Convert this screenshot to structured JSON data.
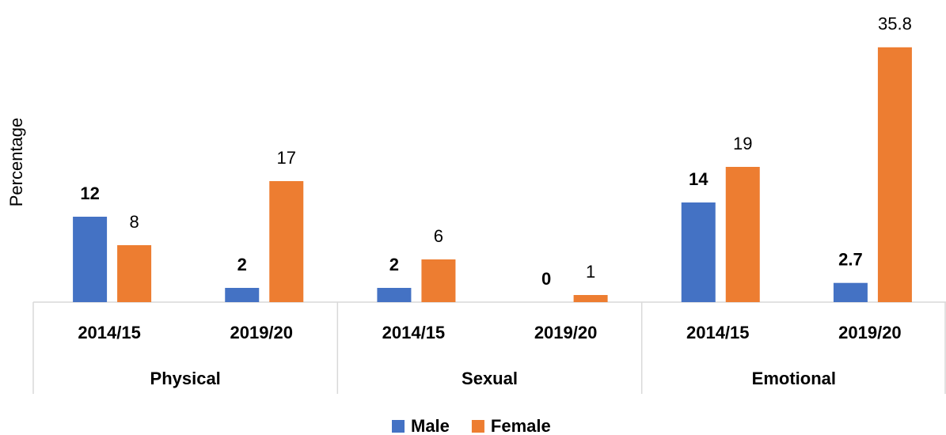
{
  "chart_data": {
    "type": "bar",
    "y_axis_label": "Percentage",
    "categories": [
      "2014/15",
      "2019/20",
      "2014/15",
      "2019/20",
      "2014/15",
      "2019/20"
    ],
    "groups": [
      "Physical",
      "Sexual",
      "Emotional"
    ],
    "series": [
      {
        "name": "Male",
        "color": "#4472c4",
        "values": [
          12,
          2,
          2,
          0,
          14,
          2.7
        ]
      },
      {
        "name": "Female",
        "color": "#ed7d31",
        "values": [
          8,
          17,
          6,
          1,
          19,
          35.8
        ]
      }
    ],
    "ylim": [
      0,
      40
    ],
    "legend": "bottom"
  }
}
